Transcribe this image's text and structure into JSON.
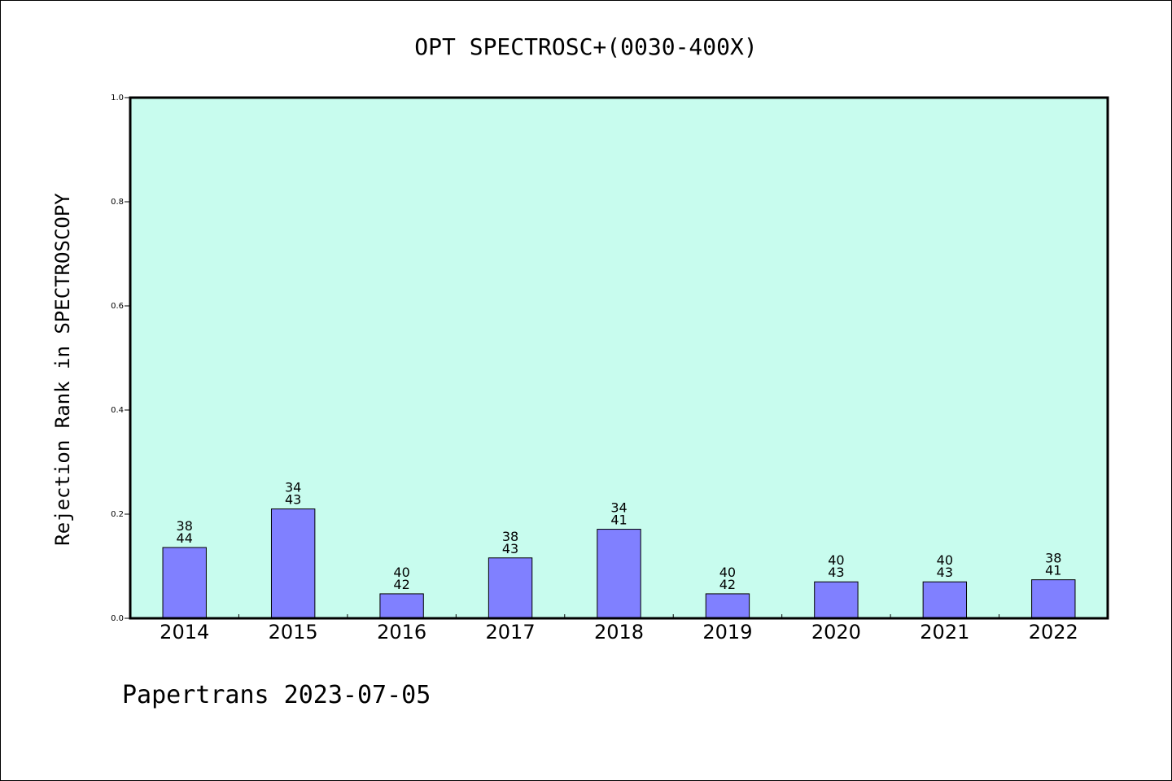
{
  "chart_data": {
    "type": "bar",
    "title": "OPT SPECTROSC+(0030-400X)",
    "ylabel": "Rejection Rank in SPECTROSCOPY",
    "xlabel": "",
    "ylim": [
      0,
      1.0
    ],
    "yticks": [
      "0.0",
      "0.2",
      "0.4",
      "0.6",
      "0.8",
      "1.0"
    ],
    "categories": [
      "2014",
      "2015",
      "2016",
      "2017",
      "2018",
      "2019",
      "2020",
      "2021",
      "2022"
    ],
    "values": [
      0.136,
      0.21,
      0.047,
      0.116,
      0.171,
      0.047,
      0.07,
      0.07,
      0.074
    ],
    "label_top": [
      "38",
      "34",
      "40",
      "38",
      "34",
      "40",
      "40",
      "40",
      "38"
    ],
    "label_bottom": [
      "44",
      "43",
      "42",
      "43",
      "41",
      "42",
      "43",
      "43",
      "41"
    ],
    "grid": false,
    "legend": "none"
  },
  "footer": "Papertrans 2023-07-05",
  "colors": {
    "plot_background": "#c8fcee",
    "bar_fill": "#8080ff",
    "axis": "#000000"
  }
}
